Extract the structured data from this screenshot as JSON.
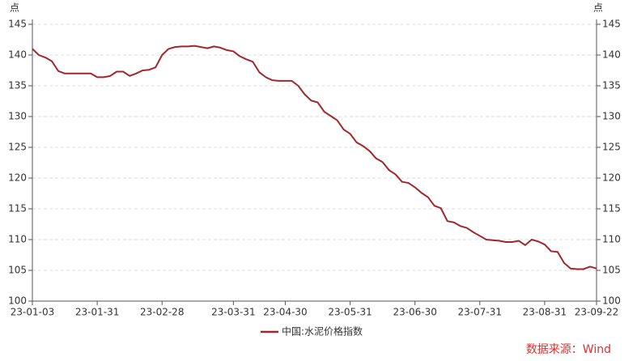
{
  "chart_data": {
    "type": "line",
    "y_label": "点",
    "y2_label": "点",
    "categories": [
      "23-01-03",
      null,
      null,
      null,
      null,
      null,
      null,
      null,
      null,
      null,
      "23-01-31",
      null,
      null,
      null,
      null,
      null,
      null,
      null,
      null,
      null,
      "23-02-28",
      null,
      null,
      null,
      null,
      null,
      null,
      null,
      null,
      null,
      null,
      "23-03-31",
      null,
      null,
      null,
      null,
      null,
      null,
      null,
      "23-04-30",
      null,
      null,
      null,
      null,
      null,
      null,
      null,
      null,
      null,
      "23-05-31",
      null,
      null,
      null,
      null,
      null,
      null,
      null,
      null,
      null,
      "23-06-30",
      null,
      null,
      null,
      null,
      null,
      null,
      null,
      null,
      null,
      "23-07-31",
      null,
      null,
      null,
      null,
      null,
      null,
      null,
      null,
      null,
      "23-08-31",
      null,
      null,
      null,
      null,
      null,
      null,
      null,
      "23-09-22"
    ],
    "series": [
      {
        "name": "中国:水泥价格指数",
        "color": "#a0282d",
        "values": [
          141,
          140,
          139.6,
          139,
          137.4,
          137,
          137,
          137,
          137,
          137,
          136.4,
          136.4,
          136.6,
          137.3,
          137.3,
          136.6,
          137,
          137.5,
          137.6,
          138,
          140,
          141,
          141.3,
          141.4,
          141.4,
          141.5,
          141.3,
          141.1,
          141.4,
          141.2,
          140.8,
          140.6,
          139.8,
          139.3,
          138.9,
          137.2,
          136.4,
          135.9,
          135.8,
          135.8,
          135.8,
          135,
          133.6,
          132.6,
          132.3,
          130.8,
          130.1,
          129.4,
          127.9,
          127.2,
          125.8,
          125.2,
          124.4,
          123.2,
          122.6,
          121.3,
          120.6,
          119.4,
          119.2,
          118.5,
          117.6,
          116.9,
          115.5,
          115.1,
          113,
          112.8,
          112.2,
          111.9,
          111.2,
          110.6,
          110,
          109.9,
          109.8,
          109.6,
          109.6,
          109.8,
          109.1,
          110,
          109.7,
          109.2,
          108.1,
          108,
          106.2,
          105.3,
          105.2,
          105.2,
          105.6,
          105.3
        ]
      }
    ],
    "ylim": [
      100,
      145
    ],
    "yticks": [
      100,
      105,
      110,
      115,
      120,
      125,
      130,
      135,
      140,
      145
    ],
    "y2lim": [
      100,
      145
    ],
    "y2ticks": [
      100,
      105,
      110,
      115,
      120,
      125,
      130,
      135,
      140,
      145
    ],
    "grid": true,
    "legend": "bottom",
    "source": "数据来源：Wind"
  }
}
